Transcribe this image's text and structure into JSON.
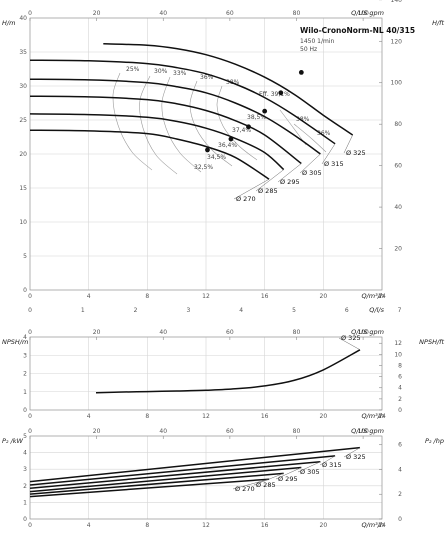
{
  "chart_data": [
    {
      "id": "head",
      "type": "line",
      "title": "Wilo-CronoNorm-NL 40/315",
      "subtitle": [
        "1450 1/min",
        "50 Hz"
      ],
      "xlabel": "Q/m³/h",
      "ylabel": "H/m",
      "top_xlabel": "Q/US gpm",
      "top_xticks": [
        "0",
        "20",
        "40",
        "60",
        "80",
        "100"
      ],
      "right_ylabel": "H/ft",
      "right_yticks": [
        "20",
        "40",
        "60",
        "80",
        "100",
        "120",
        "140"
      ],
      "xticks": [
        "0",
        "4",
        "8",
        "12",
        "16",
        "20",
        "24"
      ],
      "yticks": [
        "0",
        "5",
        "10",
        "15",
        "20",
        "25",
        "30",
        "35",
        "40"
      ],
      "lower_xlabel": "Q/l/s",
      "lower_xticks": [
        "0",
        "1",
        "2",
        "3",
        "4",
        "5",
        "6",
        "7"
      ],
      "xlim": [
        0,
        24
      ],
      "ylim": [
        0,
        40
      ],
      "series": [
        {
          "name": "Ø 325",
          "x": [
            5,
            8,
            10,
            12,
            14,
            16,
            18,
            20,
            22
          ],
          "y": [
            36.2,
            36.0,
            35.5,
            34.6,
            33.2,
            31.3,
            28.8,
            25.7,
            22.8
          ]
        },
        {
          "name": "Ø 315",
          "x": [
            0,
            4,
            8,
            10,
            12,
            14,
            16,
            18,
            20.8
          ],
          "y": [
            33.8,
            33.7,
            33.3,
            32.7,
            31.8,
            30.3,
            28.3,
            25.7,
            21.5
          ]
        },
        {
          "name": "Ø 305",
          "x": [
            0,
            4,
            8,
            10,
            12,
            14,
            16,
            18,
            19.8
          ],
          "y": [
            31.0,
            30.9,
            30.5,
            29.9,
            29.0,
            27.5,
            25.5,
            22.8,
            20.0
          ]
        },
        {
          "name": "Ø 295",
          "x": [
            0,
            4,
            8,
            10,
            12,
            14,
            16,
            18.5
          ],
          "y": [
            28.5,
            28.4,
            28.0,
            27.4,
            26.4,
            24.9,
            22.8,
            18.6
          ]
        },
        {
          "name": "Ø 285",
          "x": [
            0,
            4,
            8,
            10,
            12,
            14,
            16,
            17.3
          ],
          "y": [
            25.9,
            25.8,
            25.4,
            24.8,
            23.8,
            22.3,
            20.2,
            17.7
          ]
        },
        {
          "name": "Ø 270",
          "x": [
            0,
            4,
            8,
            10,
            12,
            14,
            16.3
          ],
          "y": [
            23.5,
            23.4,
            23.0,
            22.2,
            21.1,
            19.5,
            16.3
          ]
        }
      ],
      "efficiency": {
        "labels": [
          "25%",
          "30%",
          "33%",
          "36%",
          "38%",
          "Eff. 39,1%",
          "38,5%",
          "37,4%",
          "36,4%",
          "34,5%",
          "32,5%",
          "38%",
          "36%"
        ],
        "points": [
          {
            "x": 12.1,
            "y": 20.6
          },
          {
            "x": 13.7,
            "y": 22.2
          },
          {
            "x": 14.9,
            "y": 24.0
          },
          {
            "x": 16.0,
            "y": 26.3
          },
          {
            "x": 17.1,
            "y": 29.0
          },
          {
            "x": 18.5,
            "y": 32.0
          }
        ]
      }
    },
    {
      "id": "npsh",
      "type": "line",
      "xlabel": "Q/m³/h",
      "ylabel": "NPSH/m",
      "top_xlabel": "Q/US gpm",
      "top_xticks": [
        "0",
        "20",
        "40",
        "60",
        "80",
        "100"
      ],
      "right_ylabel": "NPSH/ft",
      "right_yticks": [
        "0",
        "2",
        "4",
        "6",
        "8",
        "10",
        "12"
      ],
      "xticks": [
        "0",
        "4",
        "8",
        "12",
        "16",
        "20",
        "24"
      ],
      "yticks": [
        "0",
        "1",
        "2",
        "3",
        "4"
      ],
      "xlim": [
        0,
        24
      ],
      "ylim": [
        0,
        4
      ],
      "series": [
        {
          "name": "Ø 325",
          "x": [
            4.5,
            6,
            8,
            10,
            12,
            14,
            16,
            18,
            20,
            22.5
          ],
          "y": [
            0.95,
            0.98,
            1.01,
            1.04,
            1.08,
            1.16,
            1.32,
            1.62,
            2.2,
            3.3
          ]
        }
      ]
    },
    {
      "id": "power",
      "type": "line",
      "xlabel": "Q/m³/h",
      "ylabel": "P₂ /kW",
      "top_xlabel": "Q/US gpm",
      "top_xticks": [
        "0",
        "20",
        "40",
        "60",
        "80",
        "100"
      ],
      "right_ylabel": "P₂ /hp",
      "right_yticks": [
        "0",
        "2",
        "4",
        "6"
      ],
      "xticks": [
        "0",
        "4",
        "8",
        "12",
        "16",
        "20",
        "24"
      ],
      "yticks": [
        "0",
        "1",
        "2",
        "3",
        "4",
        "5"
      ],
      "xlim": [
        0,
        24
      ],
      "ylim": [
        0,
        5
      ],
      "series": [
        {
          "name": "Ø 325",
          "x": [
            0,
            22.5
          ],
          "y": [
            2.25,
            4.3
          ]
        },
        {
          "name": "Ø 315",
          "x": [
            0,
            20.8
          ],
          "y": [
            2.05,
            3.8
          ]
        },
        {
          "name": "Ø 305",
          "x": [
            0,
            19.8
          ],
          "y": [
            1.85,
            3.45
          ]
        },
        {
          "name": "Ø 295",
          "x": [
            0,
            18.5
          ],
          "y": [
            1.65,
            3.1
          ]
        },
        {
          "name": "Ø 285",
          "x": [
            0,
            17.3
          ],
          "y": [
            1.5,
            2.75
          ]
        },
        {
          "name": "Ø 270",
          "x": [
            0,
            16.3
          ],
          "y": [
            1.35,
            2.4
          ]
        }
      ]
    }
  ]
}
